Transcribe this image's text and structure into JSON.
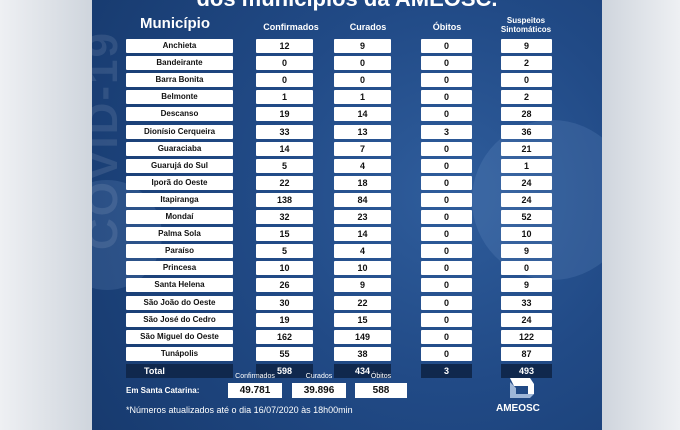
{
  "title": "dos municípios da AMEOSC.",
  "watermark": "COVID-19",
  "headers": {
    "municipio": "Município",
    "confirmados": "Confirmados",
    "curados": "Curados",
    "obitos": "Óbitos",
    "suspeitos_line1": "Suspeitos",
    "suspeitos_line2": "Sintomáticos"
  },
  "rows": [
    {
      "name": "Anchieta",
      "confirmados": "12",
      "curados": "9",
      "obitos": "0",
      "suspeitos": "9"
    },
    {
      "name": "Bandeirante",
      "confirmados": "0",
      "curados": "0",
      "obitos": "0",
      "suspeitos": "2"
    },
    {
      "name": "Barra Bonita",
      "confirmados": "0",
      "curados": "0",
      "obitos": "0",
      "suspeitos": "0"
    },
    {
      "name": "Belmonte",
      "confirmados": "1",
      "curados": "1",
      "obitos": "0",
      "suspeitos": "2"
    },
    {
      "name": "Descanso",
      "confirmados": "19",
      "curados": "14",
      "obitos": "0",
      "suspeitos": "28"
    },
    {
      "name": "Dionísio Cerqueira",
      "confirmados": "33",
      "curados": "13",
      "obitos": "3",
      "suspeitos": "36"
    },
    {
      "name": "Guaraciaba",
      "confirmados": "14",
      "curados": "7",
      "obitos": "0",
      "suspeitos": "21"
    },
    {
      "name": "Guarujá do Sul",
      "confirmados": "5",
      "curados": "4",
      "obitos": "0",
      "suspeitos": "1"
    },
    {
      "name": "Iporã do Oeste",
      "confirmados": "22",
      "curados": "18",
      "obitos": "0",
      "suspeitos": "24"
    },
    {
      "name": "Itapiranga",
      "confirmados": "138",
      "curados": "84",
      "obitos": "0",
      "suspeitos": "24"
    },
    {
      "name": "Mondaí",
      "confirmados": "32",
      "curados": "23",
      "obitos": "0",
      "suspeitos": "52"
    },
    {
      "name": "Palma Sola",
      "confirmados": "15",
      "curados": "14",
      "obitos": "0",
      "suspeitos": "10"
    },
    {
      "name": "Paraíso",
      "confirmados": "5",
      "curados": "4",
      "obitos": "0",
      "suspeitos": "9"
    },
    {
      "name": "Princesa",
      "confirmados": "10",
      "curados": "10",
      "obitos": "0",
      "suspeitos": "0"
    },
    {
      "name": "Santa Helena",
      "confirmados": "26",
      "curados": "9",
      "obitos": "0",
      "suspeitos": "9"
    },
    {
      "name": "São João do Oeste",
      "confirmados": "30",
      "curados": "22",
      "obitos": "0",
      "suspeitos": "33"
    },
    {
      "name": "São José do Cedro",
      "confirmados": "19",
      "curados": "15",
      "obitos": "0",
      "suspeitos": "24"
    },
    {
      "name": "São Miguel do Oeste",
      "confirmados": "162",
      "curados": "149",
      "obitos": "0",
      "suspeitos": "122"
    },
    {
      "name": "Tunápolis",
      "confirmados": "55",
      "curados": "38",
      "obitos": "0",
      "suspeitos": "87"
    }
  ],
  "total": {
    "label": "Total",
    "confirmados": "598",
    "curados": "434",
    "obitos": "3",
    "suspeitos": "493"
  },
  "santa_catarina": {
    "label": "Em Santa Catarina:",
    "confirmados_caption": "Confirmados",
    "curados_caption": "Curados",
    "obitos_caption": "Óbitos",
    "confirmados": "49.781",
    "curados": "39.896",
    "obitos": "588"
  },
  "note": "*Números atualizados até o dia 16/07/2020 às 18h00min",
  "logo_text": "AMEOSC",
  "colors": {
    "panel": "#214a86",
    "total": "#10284d"
  }
}
